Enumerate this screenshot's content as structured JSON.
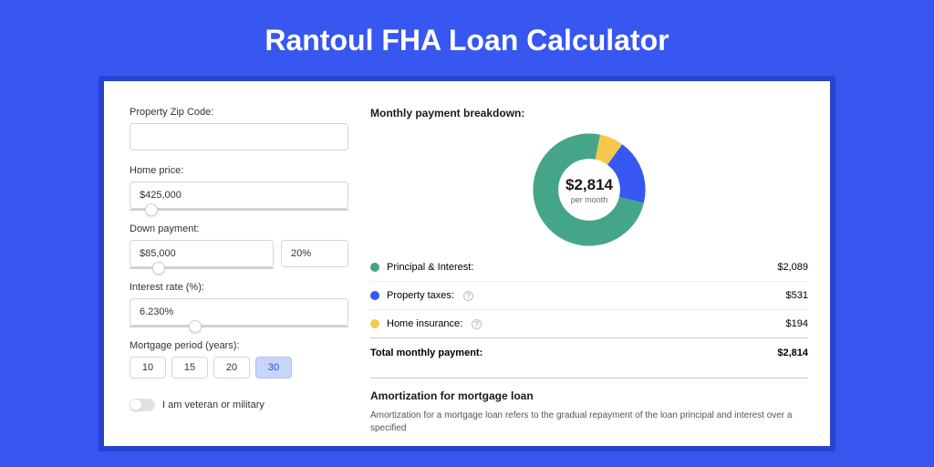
{
  "title": "Rantoul FHA Loan Calculator",
  "colors": {
    "page_bg": "#3757f0",
    "panel_wrap_bg": "#2643d4",
    "panel_bg": "#ffffff",
    "text_primary": "#1a1a1a",
    "text_muted": "#666666",
    "border": "#d6d6d6",
    "divider": "#eeeeee"
  },
  "form": {
    "zip_label": "Property Zip Code:",
    "zip_value": "",
    "home_price_label": "Home price:",
    "home_price_value": "$425,000",
    "home_price_slider_pct": 10,
    "down_payment_label": "Down payment:",
    "down_payment_amount": "$85,000",
    "down_payment_pct": "20%",
    "down_payment_slider_pct": 20,
    "interest_label": "Interest rate (%):",
    "interest_value": "6.230%",
    "interest_slider_pct": 30,
    "period_label": "Mortgage period (years):",
    "period_options": [
      "10",
      "15",
      "20",
      "30"
    ],
    "period_selected": "30",
    "veteran_label": "I am veteran or military",
    "veteran_on": false
  },
  "breakdown": {
    "title": "Monthly payment breakdown:",
    "chart": {
      "type": "donut",
      "center_value": "$2,814",
      "center_sub": "per month",
      "thickness_pct": 22,
      "slices": [
        {
          "label": "Principal & Interest",
          "value": 2089,
          "pct": 74.2,
          "color": "#45a588"
        },
        {
          "label": "Property taxes",
          "value": 531,
          "pct": 18.9,
          "color": "#3757f0"
        },
        {
          "label": "Home insurance",
          "value": 194,
          "pct": 6.9,
          "color": "#f5c84c"
        }
      ]
    },
    "rows": [
      {
        "dot": "#45a588",
        "label": "Principal & Interest:",
        "info": false,
        "amount": "$2,089"
      },
      {
        "dot": "#3757f0",
        "label": "Property taxes:",
        "info": true,
        "amount": "$531"
      },
      {
        "dot": "#f5c84c",
        "label": "Home insurance:",
        "info": true,
        "amount": "$194"
      }
    ],
    "total_label": "Total monthly payment:",
    "total_amount": "$2,814"
  },
  "amortization": {
    "title": "Amortization for mortgage loan",
    "text": "Amortization for a mortgage loan refers to the gradual repayment of the loan principal and interest over a specified"
  }
}
